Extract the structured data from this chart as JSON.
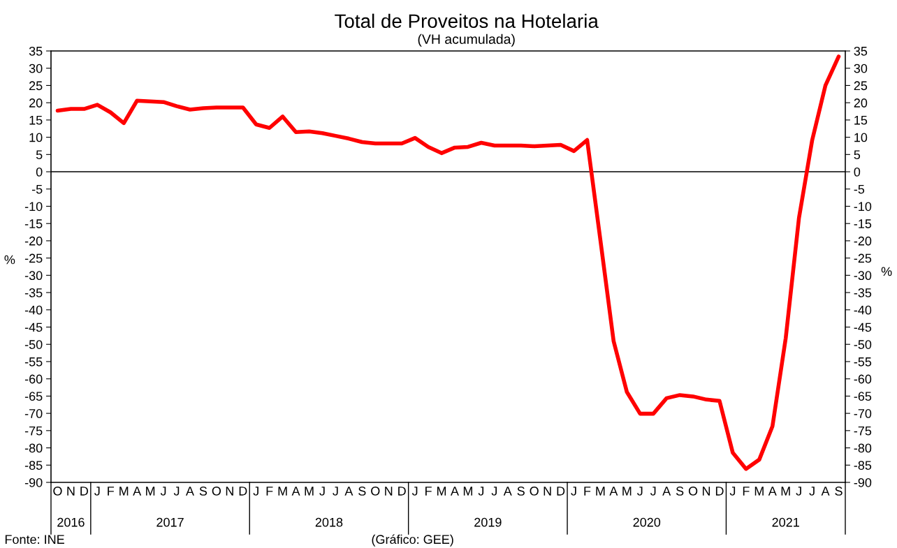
{
  "chart_data": {
    "type": "line",
    "title": "Total de Proveitos na Hotelaria",
    "subtitle": "(VH acumulada)",
    "ylabel": "%",
    "y2label": "%",
    "categories": [
      "O",
      "N",
      "D",
      "J",
      "F",
      "M",
      "A",
      "M",
      "J",
      "J",
      "A",
      "S",
      "O",
      "N",
      "D",
      "J",
      "F",
      "M",
      "A",
      "M",
      "J",
      "J",
      "A",
      "S",
      "O",
      "N",
      "D",
      "J",
      "F",
      "M",
      "A",
      "M",
      "J",
      "J",
      "A",
      "S",
      "O",
      "N",
      "D",
      "J",
      "F",
      "M",
      "A",
      "M",
      "J",
      "J",
      "A",
      "S",
      "O",
      "N",
      "D",
      "J",
      "F",
      "M",
      "A",
      "M",
      "J",
      "J",
      "A",
      "S"
    ],
    "series": [
      {
        "color": "#ff0000",
        "values": [
          17.7,
          18.2,
          18.2,
          19.4,
          17.2,
          14.1,
          20.6,
          20.4,
          20.2,
          19.0,
          18.0,
          18.4,
          18.6,
          18.6,
          18.6,
          13.7,
          12.7,
          16.0,
          11.5,
          11.7,
          11.2,
          10.4,
          9.6,
          8.6,
          8.2,
          8.2,
          8.2,
          9.8,
          7.2,
          5.4,
          7.0,
          7.2,
          8.4,
          7.6,
          7.6,
          7.6,
          7.4,
          7.6,
          7.8,
          6.0,
          9.2,
          -19.8,
          -49.1,
          -63.8,
          -70.1,
          -70.1,
          -65.6,
          -64.7,
          -65.1,
          -66.0,
          -66.4,
          -81.4,
          -86.1,
          -83.4,
          -73.7,
          -48.2,
          -13.4,
          9.2,
          25.0,
          33.4
        ]
      }
    ],
    "ylim": [
      -90,
      35
    ],
    "yticks": [
      -90,
      -85,
      -80,
      -75,
      -70,
      -65,
      -60,
      -55,
      -50,
      -45,
      -40,
      -35,
      -30,
      -25,
      -20,
      -15,
      -10,
      -5,
      0,
      5,
      10,
      15,
      20,
      25,
      30,
      35
    ],
    "y2lim": [
      -90,
      35
    ],
    "y2ticks": [
      -90,
      -85,
      -80,
      -75,
      -70,
      -65,
      -60,
      -55,
      -50,
      -45,
      -40,
      -35,
      -30,
      -25,
      -20,
      -15,
      -10,
      -5,
      0,
      5,
      10,
      15,
      20,
      25,
      30,
      35
    ],
    "ref_lines": [
      {
        "axis": "y",
        "value": 0,
        "color": "#000000"
      }
    ],
    "grid": false,
    "legend": false,
    "marker": "none",
    "line_style": "solid",
    "annotations": [
      "2016",
      "2017",
      "2018",
      "2019",
      "2020",
      "2021",
      "Fonte: INE",
      "(Gráfico: GEE)"
    ]
  }
}
